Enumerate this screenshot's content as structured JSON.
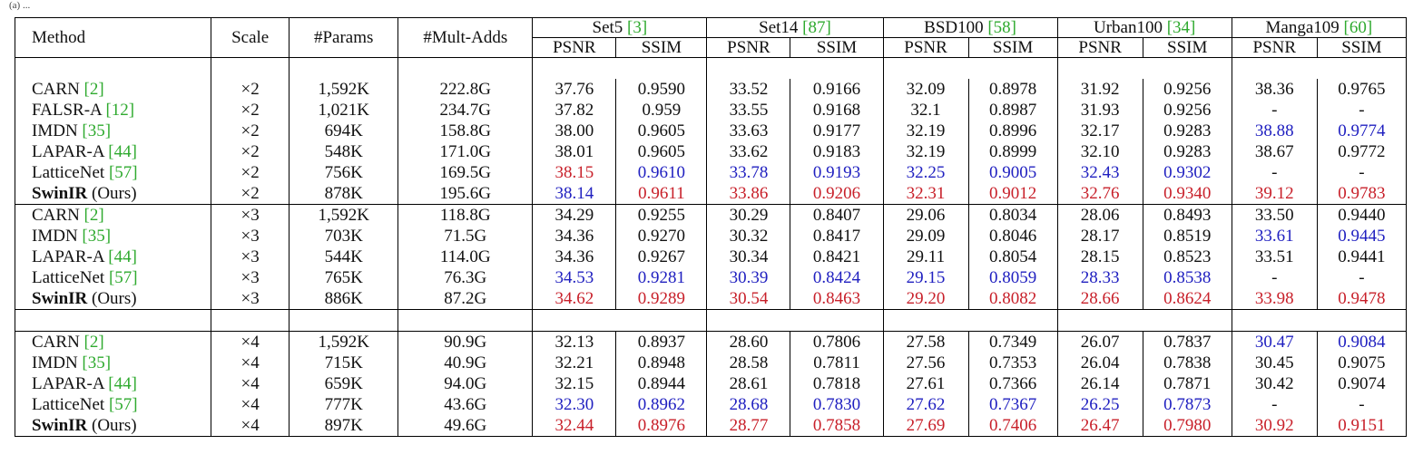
{
  "caption": "(a) ...",
  "header": {
    "method": "Method",
    "scale": "Scale",
    "params": "#Params",
    "multadds": "#Mult-Adds",
    "datasets": [
      {
        "name": "Set5",
        "ref": "[3]"
      },
      {
        "name": "Set14",
        "ref": "[87]"
      },
      {
        "name": "BSD100",
        "ref": "[58]"
      },
      {
        "name": "Urban100",
        "ref": "[34]"
      },
      {
        "name": "Manga109",
        "ref": "[60]"
      }
    ],
    "psnr": "PSNR",
    "ssim": "SSIM"
  },
  "colors": {
    "best": "#c8202a",
    "second": "#2020c0",
    "ref": "#2faa2f"
  },
  "groups": [
    {
      "rows": [
        {
          "method": "CARN",
          "ref": "[2]",
          "bold": false,
          "suffix": "",
          "scale": "×2",
          "params": "1,592K",
          "multadds": "222.8G",
          "vals": [
            "37.76",
            "0.9590",
            "33.52",
            "0.9166",
            "32.09",
            "0.8978",
            "31.92",
            "0.9256",
            "38.36",
            "0.9765"
          ],
          "marks": [
            "",
            "",
            "",
            "",
            "",
            "",
            "",
            "",
            "",
            ""
          ]
        },
        {
          "method": "FALSR-A",
          "ref": "[12]",
          "bold": false,
          "suffix": "",
          "scale": "×2",
          "params": "1,021K",
          "multadds": "234.7G",
          "vals": [
            "37.82",
            "0.959",
            "33.55",
            "0.9168",
            "32.1",
            "0.8987",
            "31.93",
            "0.9256",
            "-",
            "-"
          ],
          "marks": [
            "",
            "",
            "",
            "",
            "",
            "",
            "",
            "",
            "",
            ""
          ]
        },
        {
          "method": "IMDN",
          "ref": "[35]",
          "bold": false,
          "suffix": "",
          "scale": "×2",
          "params": "694K",
          "multadds": "158.8G",
          "vals": [
            "38.00",
            "0.9605",
            "33.63",
            "0.9177",
            "32.19",
            "0.8996",
            "32.17",
            "0.9283",
            "38.88",
            "0.9774"
          ],
          "marks": [
            "",
            "",
            "",
            "",
            "",
            "",
            "",
            "",
            "b",
            "b"
          ]
        },
        {
          "method": "LAPAR-A",
          "ref": "[44]",
          "bold": false,
          "suffix": "",
          "scale": "×2",
          "params": "548K",
          "multadds": "171.0G",
          "vals": [
            "38.01",
            "0.9605",
            "33.62",
            "0.9183",
            "32.19",
            "0.8999",
            "32.10",
            "0.9283",
            "38.67",
            "0.9772"
          ],
          "marks": [
            "",
            "",
            "",
            "",
            "",
            "",
            "",
            "",
            "",
            ""
          ]
        },
        {
          "method": "LatticeNet",
          "ref": "[57]",
          "bold": false,
          "suffix": "",
          "scale": "×2",
          "params": "756K",
          "multadds": "169.5G",
          "vals": [
            "38.15",
            "0.9610",
            "33.78",
            "0.9193",
            "32.25",
            "0.9005",
            "32.43",
            "0.9302",
            "-",
            "-"
          ],
          "marks": [
            "r",
            "b",
            "b",
            "b",
            "b",
            "b",
            "b",
            "b",
            "",
            ""
          ]
        },
        {
          "method": "SwinIR",
          "ref": "",
          "bold": true,
          "suffix": " (Ours)",
          "scale": "×2",
          "params": "878K",
          "multadds": "195.6G",
          "vals": [
            "38.14",
            "0.9611",
            "33.86",
            "0.9206",
            "32.31",
            "0.9012",
            "32.76",
            "0.9340",
            "39.12",
            "0.9783"
          ],
          "marks": [
            "b",
            "r",
            "r",
            "r",
            "r",
            "r",
            "r",
            "r",
            "r",
            "r"
          ]
        }
      ]
    },
    {
      "rows": [
        {
          "method": "CARN",
          "ref": "[2]",
          "bold": false,
          "suffix": "",
          "scale": "×3",
          "params": "1,592K",
          "multadds": "118.8G",
          "vals": [
            "34.29",
            "0.9255",
            "30.29",
            "0.8407",
            "29.06",
            "0.8034",
            "28.06",
            "0.8493",
            "33.50",
            "0.9440"
          ],
          "marks": [
            "",
            "",
            "",
            "",
            "",
            "",
            "",
            "",
            "",
            ""
          ]
        },
        {
          "method": "IMDN",
          "ref": "[35]",
          "bold": false,
          "suffix": "",
          "scale": "×3",
          "params": "703K",
          "multadds": "71.5G",
          "vals": [
            "34.36",
            "0.9270",
            "30.32",
            "0.8417",
            "29.09",
            "0.8046",
            "28.17",
            "0.8519",
            "33.61",
            "0.9445"
          ],
          "marks": [
            "",
            "",
            "",
            "",
            "",
            "",
            "",
            "",
            "b",
            "b"
          ]
        },
        {
          "method": "LAPAR-A",
          "ref": "[44]",
          "bold": false,
          "suffix": "",
          "scale": "×3",
          "params": "544K",
          "multadds": "114.0G",
          "vals": [
            "34.36",
            "0.9267",
            "30.34",
            "0.8421",
            "29.11",
            "0.8054",
            "28.15",
            "0.8523",
            "33.51",
            "0.9441"
          ],
          "marks": [
            "",
            "",
            "",
            "",
            "",
            "",
            "",
            "",
            "",
            ""
          ]
        },
        {
          "method": "LatticeNet",
          "ref": "[57]",
          "bold": false,
          "suffix": "",
          "scale": "×3",
          "params": "765K",
          "multadds": "76.3G",
          "vals": [
            "34.53",
            "0.9281",
            "30.39",
            "0.8424",
            "29.15",
            "0.8059",
            "28.33",
            "0.8538",
            "-",
            "-"
          ],
          "marks": [
            "b",
            "b",
            "b",
            "b",
            "b",
            "b",
            "b",
            "b",
            "",
            ""
          ]
        },
        {
          "method": "SwinIR",
          "ref": "",
          "bold": true,
          "suffix": " (Ours)",
          "scale": "×3",
          "params": "886K",
          "multadds": "87.2G",
          "vals": [
            "34.62",
            "0.9289",
            "30.54",
            "0.8463",
            "29.20",
            "0.8082",
            "28.66",
            "0.8624",
            "33.98",
            "0.9478"
          ],
          "marks": [
            "r",
            "r",
            "r",
            "r",
            "r",
            "r",
            "r",
            "r",
            "r",
            "r"
          ]
        }
      ]
    },
    {
      "rows": [
        {
          "method": "CARN",
          "ref": "[2]",
          "bold": false,
          "suffix": "",
          "scale": "×4",
          "params": "1,592K",
          "multadds": "90.9G",
          "vals": [
            "32.13",
            "0.8937",
            "28.60",
            "0.7806",
            "27.58",
            "0.7349",
            "26.07",
            "0.7837",
            "30.47",
            "0.9084"
          ],
          "marks": [
            "",
            "",
            "",
            "",
            "",
            "",
            "",
            "",
            "b",
            "b"
          ]
        },
        {
          "method": "IMDN",
          "ref": "[35]",
          "bold": false,
          "suffix": "",
          "scale": "×4",
          "params": "715K",
          "multadds": "40.9G",
          "vals": [
            "32.21",
            "0.8948",
            "28.58",
            "0.7811",
            "27.56",
            "0.7353",
            "26.04",
            "0.7838",
            "30.45",
            "0.9075"
          ],
          "marks": [
            "",
            "",
            "",
            "",
            "",
            "",
            "",
            "",
            "",
            ""
          ]
        },
        {
          "method": "LAPAR-A",
          "ref": "[44]",
          "bold": false,
          "suffix": "",
          "scale": "×4",
          "params": "659K",
          "multadds": "94.0G",
          "vals": [
            "32.15",
            "0.8944",
            "28.61",
            "0.7818",
            "27.61",
            "0.7366",
            "26.14",
            "0.7871",
            "30.42",
            "0.9074"
          ],
          "marks": [
            "",
            "",
            "",
            "",
            "",
            "",
            "",
            "",
            "",
            ""
          ]
        },
        {
          "method": "LatticeNet",
          "ref": "[57]",
          "bold": false,
          "suffix": "",
          "scale": "×4",
          "params": "777K",
          "multadds": "43.6G",
          "vals": [
            "32.30",
            "0.8962",
            "28.68",
            "0.7830",
            "27.62",
            "0.7367",
            "26.25",
            "0.7873",
            "-",
            "-"
          ],
          "marks": [
            "b",
            "b",
            "b",
            "b",
            "b",
            "b",
            "b",
            "b",
            "",
            ""
          ]
        },
        {
          "method": "SwinIR",
          "ref": "",
          "bold": true,
          "suffix": " (Ours)",
          "scale": "×4",
          "params": "897K",
          "multadds": "49.6G",
          "vals": [
            "32.44",
            "0.8976",
            "28.77",
            "0.7858",
            "27.69",
            "0.7406",
            "26.47",
            "0.7980",
            "30.92",
            "0.9151"
          ],
          "marks": [
            "r",
            "r",
            "r",
            "r",
            "r",
            "r",
            "r",
            "r",
            "r",
            "r"
          ]
        }
      ]
    }
  ]
}
